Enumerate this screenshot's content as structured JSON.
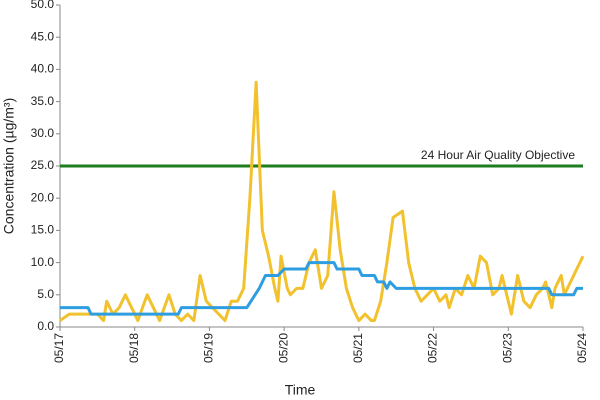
{
  "chart_data": {
    "type": "line",
    "xlabel": "Time",
    "ylabel": "Concentration (µg/m³)",
    "xlim": [
      0,
      168
    ],
    "xticks": [
      {
        "value": 0,
        "label": "05/17"
      },
      {
        "value": 24,
        "label": "05/18"
      },
      {
        "value": 48,
        "label": "05/19"
      },
      {
        "value": 72,
        "label": "05/20"
      },
      {
        "value": 96,
        "label": "05/21"
      },
      {
        "value": 120,
        "label": "05/22"
      },
      {
        "value": 144,
        "label": "05/23"
      },
      {
        "value": 168,
        "label": "05/24"
      }
    ],
    "ylim": [
      0,
      50
    ],
    "yticks": [
      {
        "value": 0,
        "label": "0.0"
      },
      {
        "value": 5,
        "label": "5.0"
      },
      {
        "value": 10,
        "label": "10.0"
      },
      {
        "value": 15,
        "label": "15.0"
      },
      {
        "value": 20,
        "label": "20.0"
      },
      {
        "value": 25,
        "label": "25.0"
      },
      {
        "value": 30,
        "label": "30.0"
      },
      {
        "value": 35,
        "label": "35.0"
      },
      {
        "value": 40,
        "label": "40.0"
      },
      {
        "value": 45,
        "label": "45.0"
      },
      {
        "value": 50,
        "label": "50.0"
      }
    ],
    "grid": false,
    "threshold": {
      "value": 25,
      "label": "24 Hour Air Quality Objective",
      "color": "#1e7d1e"
    },
    "series": [
      {
        "color": "#f2c12e",
        "x": [
          0,
          3,
          6,
          9,
          12,
          14,
          15,
          17,
          19,
          21,
          23,
          25,
          28,
          30,
          32,
          35,
          37,
          39,
          41,
          43,
          45,
          47,
          49,
          51,
          53,
          55,
          57,
          59,
          61,
          63,
          65,
          67,
          69,
          70,
          71,
          73,
          74,
          76,
          78,
          80,
          82,
          84,
          86,
          88,
          90,
          92,
          94,
          96,
          98,
          100,
          101,
          103,
          105,
          107,
          110,
          112,
          114,
          116,
          118,
          120,
          122,
          124,
          125,
          127,
          129,
          131,
          133,
          135,
          137,
          139,
          141,
          142,
          144,
          145,
          147,
          149,
          151,
          153,
          155,
          156,
          158,
          159,
          161,
          162,
          164,
          166,
          168
        ],
        "values": [
          1,
          2,
          2,
          2,
          2,
          1,
          4,
          2,
          3,
          5,
          3,
          1,
          5,
          3,
          1,
          5,
          2,
          1,
          2,
          1,
          8,
          4,
          3,
          2,
          1,
          4,
          4,
          6,
          20,
          38,
          15,
          11,
          6,
          4,
          11,
          6,
          5,
          6,
          6,
          10,
          12,
          6,
          8,
          21,
          12,
          6,
          3,
          1,
          2,
          1,
          1,
          4,
          10,
          17,
          18,
          10,
          6,
          4,
          5,
          6,
          4,
          5,
          3,
          6,
          5,
          8,
          6,
          11,
          10,
          5,
          6,
          8,
          4,
          2,
          8,
          4,
          3,
          5,
          6,
          7,
          3,
          6,
          8,
          5,
          7,
          9,
          11
        ]
      },
      {
        "color": "#2e9ee0",
        "x": [
          0,
          9,
          10,
          38,
          39,
          60,
          64,
          66,
          70,
          72,
          79,
          80,
          88,
          89,
          96,
          97,
          101,
          102,
          104,
          105,
          106,
          108,
          157,
          158,
          165,
          166,
          168
        ],
        "values": [
          3,
          3,
          2,
          2,
          3,
          3,
          6,
          8,
          8,
          9,
          9,
          10,
          10,
          9,
          9,
          8,
          8,
          7,
          7,
          6,
          7,
          6,
          6,
          5,
          5,
          6,
          6
        ]
      }
    ]
  }
}
